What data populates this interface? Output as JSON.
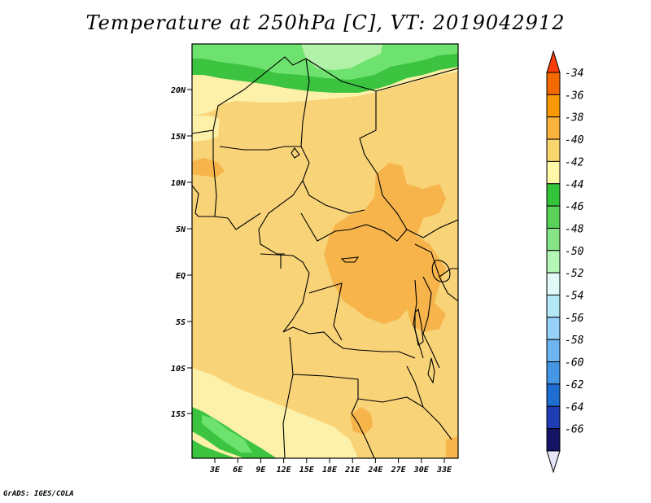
{
  "title": "Temperature at 250hPa [C], VT: 2019042912",
  "credit": "GrADS: IGES/COLA",
  "map": {
    "lat_ticks": [
      "20N",
      "15N",
      "10N",
      "5N",
      "EQ",
      "5S",
      "10S",
      "15S"
    ],
    "lon_ticks": [
      "3E",
      "6E",
      "9E",
      "12E",
      "15E",
      "18E",
      "21E",
      "24E",
      "27E",
      "30E",
      "33E"
    ],
    "lat_range": [
      -19,
      24.5
    ],
    "lon_range": [
      0,
      35
    ]
  },
  "colorbar": {
    "labels": [
      "-34",
      "-36",
      "-38",
      "-40",
      "-42",
      "-44",
      "-46",
      "-48",
      "-50",
      "-52",
      "-54",
      "-56",
      "-58",
      "-60",
      "-62",
      "-64",
      "-66"
    ],
    "colors": [
      "#fa3c0a",
      "#f56a00",
      "#fa9a00",
      "#f8b43c",
      "#fad66e",
      "#fff7a8",
      "#33c43c",
      "#5ad25a",
      "#86e486",
      "#b4f6b4",
      "#e1faf8",
      "#b4eaf8",
      "#96d2fa",
      "#6eb4f0",
      "#4696e6",
      "#1e6ed2",
      "#1e3cb4",
      "#141464",
      "#e6e6fa"
    ]
  },
  "colors": {
    "c40": "#f8d378",
    "c38": "#f6b44a",
    "c42": "#fdf0a8",
    "c44": "#3cc440",
    "c46": "#6ee26e",
    "c48": "#b2f2a8",
    "c36": "#f5a334",
    "border": "#000000"
  }
}
